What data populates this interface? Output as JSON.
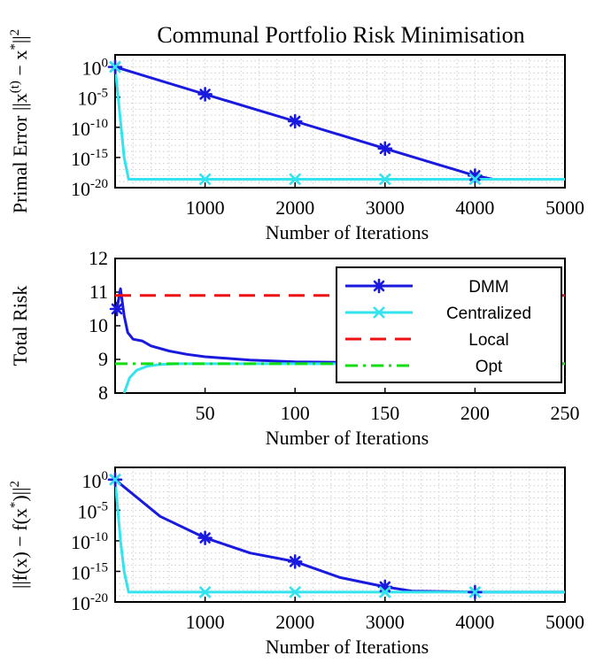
{
  "figure": {
    "title": "Communal Portfolio Risk Minimisation"
  },
  "colors": {
    "DMM": "#1a1adf",
    "Centralized": "#33e3ee",
    "Local": "#ee1111",
    "Opt": "#11dd11",
    "axis": "#000000",
    "grid": "#cfcfcf"
  },
  "chart_data": [
    {
      "type": "line",
      "id": "primal",
      "title": "Communal Portfolio Risk Minimisation",
      "xlabel": "Number of Iterations",
      "ylabel": "Primal Error ||x(t) − x*||²",
      "ylabel_parts": {
        "pre": "Primal Error ",
        "sup_t": "(t)",
        "sup_star": "*",
        "sup_2": "2"
      },
      "yscale": "log",
      "xlim": [
        0,
        5000
      ],
      "ylim": [
        1e-20,
        100.0
      ],
      "xticks": [
        1000,
        2000,
        3000,
        4000,
        5000
      ],
      "xtick_labels": [
        "1000",
        "2000",
        "3000",
        "4000",
        "5000"
      ],
      "yticks": [
        1,
        1e-05,
        1e-10,
        1e-15,
        1e-20
      ],
      "ytick_labels": [
        {
          "base": "10",
          "exp": "0"
        },
        {
          "base": "10",
          "exp": "-5"
        },
        {
          "base": "10",
          "exp": "-10"
        },
        {
          "base": "10",
          "exp": "-15"
        },
        {
          "base": "10",
          "exp": "-20"
        }
      ],
      "grid": true,
      "series": [
        {
          "name": "DMM",
          "x": [
            0,
            1000,
            2000,
            3000,
            4000,
            4200,
            5000
          ],
          "y": [
            1,
            3e-05,
            1e-09,
            3e-14,
            1e-18,
            2.5e-19,
            2.5e-19
          ],
          "marker_x": [
            0,
            1000,
            2000,
            3000,
            4000
          ]
        },
        {
          "name": "Centralized",
          "x": [
            0,
            60,
            100,
            150,
            5000
          ],
          "y": [
            1,
            1e-09,
            1e-15,
            2.5e-19,
            2.5e-19
          ],
          "marker_x": [
            0,
            1000,
            2000,
            3000,
            4000
          ]
        }
      ]
    },
    {
      "type": "line",
      "id": "risk",
      "xlabel": "Number of Iterations",
      "ylabel": "Total Risk",
      "xlim": [
        0,
        250
      ],
      "ylim": [
        8,
        12
      ],
      "xticks": [
        50,
        100,
        150,
        200,
        250
      ],
      "xtick_labels": [
        "50",
        "100",
        "150",
        "200",
        "250"
      ],
      "yticks": [
        8,
        9,
        10,
        11,
        12
      ],
      "ytick_labels": [
        "8",
        "9",
        "10",
        "11",
        "12"
      ],
      "grid": false,
      "legend_position": "top-right",
      "series": [
        {
          "name": "DMM",
          "x": [
            1,
            3,
            5,
            7,
            10,
            15,
            20,
            30,
            40,
            50,
            75,
            100,
            150,
            200,
            250
          ],
          "y": [
            10.5,
            11.1,
            10.3,
            9.8,
            9.6,
            9.55,
            9.4,
            9.25,
            9.15,
            9.08,
            8.98,
            8.93,
            8.9,
            8.88,
            8.87
          ],
          "marker_x": [
            1
          ]
        },
        {
          "name": "Centralized",
          "x": [
            5,
            8,
            12,
            18,
            25,
            35,
            250
          ],
          "y": [
            8.0,
            8.45,
            8.68,
            8.8,
            8.85,
            8.87,
            8.87
          ],
          "marker_x": []
        },
        {
          "name": "Local",
          "x": [
            0,
            250
          ],
          "y": [
            10.9,
            10.9
          ],
          "style": "dashed"
        },
        {
          "name": "Opt",
          "x": [
            0,
            250
          ],
          "y": [
            8.87,
            8.87
          ],
          "style": "dashdot"
        }
      ]
    },
    {
      "type": "line",
      "id": "objective",
      "xlabel": "Number of Iterations",
      "ylabel": "||f(x) − f(x*)||²",
      "ylabel_parts": {
        "pre": "||f(x) − f(x",
        "sup_star": "*",
        "post": ")||",
        "sup_2": "2"
      },
      "yscale": "log",
      "xlim": [
        0,
        5000
      ],
      "ylim": [
        1e-20,
        100.0
      ],
      "xticks": [
        1000,
        2000,
        3000,
        4000,
        5000
      ],
      "xtick_labels": [
        "1000",
        "2000",
        "3000",
        "4000",
        "5000"
      ],
      "yticks": [
        1,
        1e-05,
        1e-10,
        1e-15,
        1e-20
      ],
      "ytick_labels": [
        {
          "base": "10",
          "exp": "0"
        },
        {
          "base": "10",
          "exp": "-5"
        },
        {
          "base": "10",
          "exp": "-10"
        },
        {
          "base": "10",
          "exp": "-15"
        },
        {
          "base": "10",
          "exp": "-20"
        }
      ],
      "grid": true,
      "series": [
        {
          "name": "DMM",
          "x": [
            0,
            500,
            1000,
            1500,
            2000,
            2500,
            3000,
            3300,
            4000,
            5000
          ],
          "y": [
            1,
            1e-06,
            3e-10,
            1e-12,
            4e-14,
            1e-16,
            3e-18,
            6e-19,
            4e-19,
            4e-19
          ],
          "marker_x": [
            0,
            1000,
            2000,
            3000,
            4000
          ]
        },
        {
          "name": "Centralized",
          "x": [
            0,
            60,
            100,
            150,
            5000
          ],
          "y": [
            1,
            1e-10,
            1e-15,
            4e-19,
            4e-19
          ],
          "marker_x": [
            0,
            1000,
            2000,
            3000,
            4000
          ]
        }
      ]
    }
  ]
}
